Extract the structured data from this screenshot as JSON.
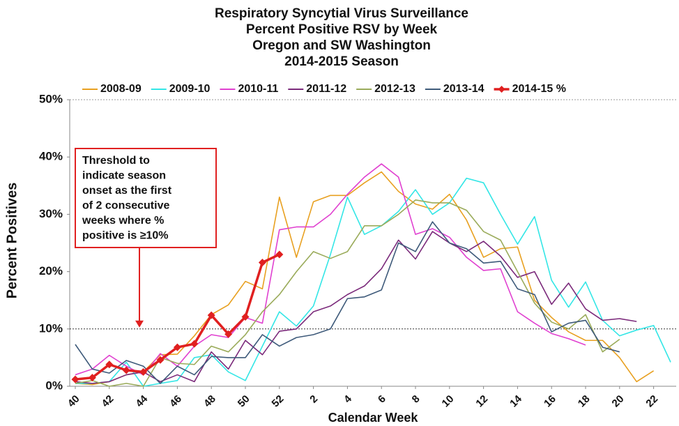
{
  "chart_data": {
    "type": "line",
    "title": [
      "Respiratory Syncytial Virus Surveillance",
      "Percent Positive RSV by Week",
      "Oregon and SW Washington",
      "2014-2015 Season"
    ],
    "title_highlight_color": "#c00000",
    "x_label": "Calendar Week",
    "y_label": "Percent Positives",
    "categories": [
      "40",
      null,
      "42",
      null,
      "44",
      null,
      "46",
      null,
      "48",
      null,
      "50",
      null,
      "52",
      null,
      "2",
      null,
      "4",
      null,
      "6",
      null,
      "8",
      null,
      "10",
      null,
      "12",
      null,
      "14",
      null,
      "16",
      null,
      "18",
      null,
      "20",
      null,
      "22",
      null
    ],
    "ylim": [
      0,
      50
    ],
    "yticks": [
      {
        "value": 0,
        "label": "0%"
      },
      {
        "value": 10,
        "label": "10%"
      },
      {
        "value": 20,
        "label": "20%"
      },
      {
        "value": 30,
        "label": "30%"
      },
      {
        "value": 40,
        "label": "40%"
      },
      {
        "value": 50,
        "label": "50%"
      }
    ],
    "grid": false,
    "threshold": 10,
    "annotation": [
      "Threshold to",
      "indicate season",
      "onset  as the first",
      "of 2 consecutive",
      "weeks where %",
      "positive is ≥10%"
    ],
    "annotation_color": "#e02020",
    "legend": "top",
    "series": [
      {
        "name": "2008-09",
        "color": "#e8a020",
        "values": [
          0.5,
          0.3,
          0.8,
          2,
          2.5,
          5.5,
          5.6,
          8.8,
          12.5,
          14.2,
          18.3,
          17,
          33,
          22.5,
          32.2,
          33.3,
          33.3,
          35.5,
          37.4,
          34,
          31.8,
          30.9,
          33.5,
          29,
          22.5,
          24,
          24.3,
          15,
          12,
          9.5,
          8,
          8,
          5,
          0.8,
          2.7,
          null
        ]
      },
      {
        "name": "2009-10",
        "color": "#33e6e6",
        "values": [
          0.5,
          0.5,
          0.8,
          4.2,
          0,
          0.5,
          1,
          5,
          5.5,
          2.5,
          1,
          7,
          13,
          10.5,
          14,
          23,
          33,
          26.5,
          28,
          30.5,
          34.3,
          30,
          32,
          36.3,
          35.5,
          30,
          24.8,
          29.6,
          18.5,
          13.8,
          18.2,
          11.5,
          8.8,
          9.8,
          10.6,
          4.2
        ]
      },
      {
        "name": "2010-11",
        "color": "#e040d0",
        "values": [
          2,
          3,
          5.4,
          3.5,
          2,
          5.7,
          3.5,
          7,
          9,
          8.5,
          12,
          11,
          27.3,
          27.8,
          27.8,
          30,
          33.5,
          36.5,
          38.8,
          36.5,
          26.5,
          27.5,
          26,
          22.5,
          20.2,
          20.5,
          13,
          11,
          9.2,
          8.3,
          7.2,
          null,
          null,
          null,
          null,
          null
        ]
      },
      {
        "name": "2011-12",
        "color": "#7b2a7b",
        "values": [
          0.8,
          0.5,
          0.8,
          2,
          2.5,
          0.8,
          2,
          0.8,
          6,
          3,
          8,
          5.5,
          9.6,
          10,
          13,
          14,
          16,
          17.5,
          20.5,
          25.5,
          22.2,
          27,
          25,
          23.5,
          25.3,
          22.7,
          19,
          20,
          14.3,
          18,
          13.5,
          11.5,
          11.8,
          11.3,
          null,
          null
        ]
      },
      {
        "name": "2012-13",
        "color": "#9aab5a",
        "values": [
          0.5,
          1,
          0,
          0.5,
          0,
          5,
          4,
          3.8,
          7,
          6,
          9,
          13,
          16,
          20,
          23.5,
          22.3,
          23.5,
          28,
          28,
          30,
          32.5,
          32,
          32,
          30.7,
          27,
          25.5,
          20,
          14.5,
          11.2,
          10,
          12.5,
          6,
          8.2,
          null,
          null,
          null
        ]
      },
      {
        "name": "2013-14",
        "color": "#3e5a7a",
        "values": [
          7.3,
          3,
          2.3,
          4.5,
          3.5,
          0.5,
          3.5,
          2,
          5.2,
          5,
          5,
          9,
          7,
          8.5,
          9,
          10,
          15.3,
          15.6,
          16.8,
          25,
          23.5,
          28.7,
          25,
          24,
          21.5,
          21.8,
          17,
          16,
          9.5,
          11,
          11.5,
          6.8,
          6,
          null,
          null,
          null
        ]
      },
      {
        "name": "2014-15 %",
        "color": "#e02020",
        "marker": "diamond",
        "values": [
          1.2,
          1.5,
          3.8,
          2.8,
          2.5,
          4.6,
          6.8,
          7.4,
          12.4,
          9.1,
          12.1,
          21.6,
          23.0,
          null,
          null,
          null,
          null,
          null,
          null,
          null,
          null,
          null,
          null,
          null,
          null,
          null,
          null,
          null,
          null,
          null,
          null,
          null,
          null,
          null,
          null,
          null
        ]
      }
    ]
  }
}
